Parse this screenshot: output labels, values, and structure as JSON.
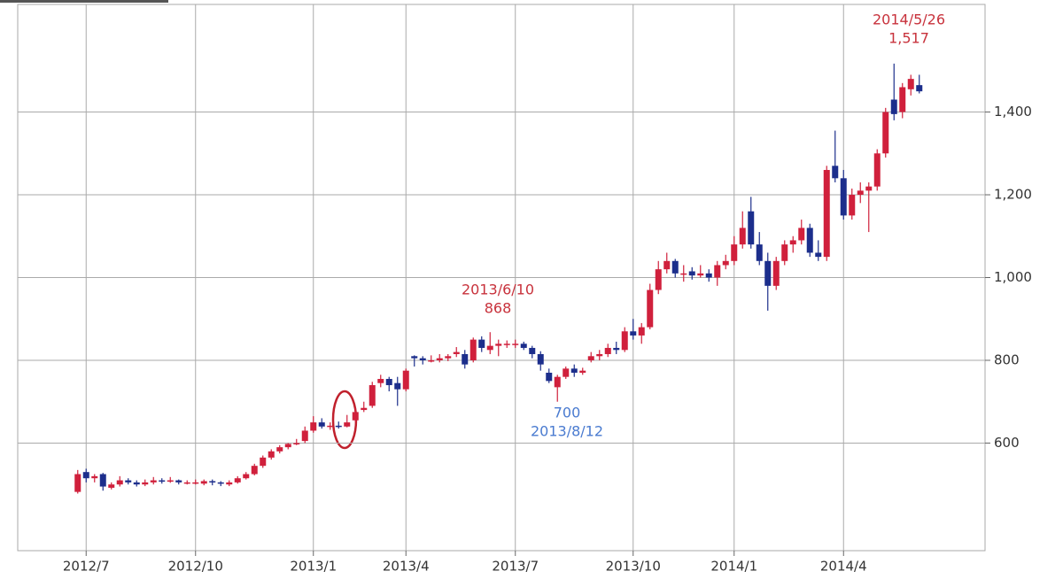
{
  "chart_data": {
    "type": "candlestick",
    "up_color": "#d0203c",
    "down_color": "#1c2e8c",
    "grid": true,
    "ylim": [
      340,
      1660
    ],
    "yticks": [
      600,
      800,
      {
        "value": 1000,
        "label": "1,000"
      },
      {
        "value": 1200,
        "label": "1,200"
      },
      {
        "value": 1400,
        "label": "1,400"
      }
    ],
    "categories": [
      null,
      "2012/7",
      null,
      null,
      null,
      null,
      null,
      null,
      null,
      null,
      null,
      null,
      null,
      null,
      "2012/10",
      null,
      null,
      null,
      null,
      null,
      null,
      null,
      null,
      null,
      null,
      null,
      null,
      null,
      "2013/1",
      null,
      null,
      null,
      null,
      null,
      null,
      null,
      null,
      null,
      null,
      "2013/4",
      null,
      null,
      null,
      null,
      null,
      null,
      null,
      null,
      null,
      null,
      null,
      null,
      "2013/7",
      null,
      null,
      null,
      null,
      null,
      null,
      null,
      null,
      null,
      null,
      null,
      null,
      null,
      "2013/10",
      null,
      null,
      null,
      null,
      null,
      null,
      null,
      null,
      null,
      null,
      null,
      "2014/1",
      null,
      null,
      null,
      null,
      null,
      null,
      null,
      null,
      null,
      null,
      null,
      null,
      "2014/4",
      null,
      null,
      null,
      null,
      null,
      null,
      null,
      null,
      null
    ],
    "open": [
      482,
      530,
      515,
      525,
      492,
      500,
      510,
      505,
      500,
      505,
      510,
      508,
      510,
      505,
      505,
      502,
      508,
      505,
      500,
      505,
      515,
      525,
      545,
      565,
      580,
      590,
      598,
      605,
      630,
      650,
      640,
      642,
      640,
      655,
      680,
      690,
      745,
      755,
      745,
      730,
      810,
      805,
      800,
      800,
      805,
      815,
      815,
      800,
      850,
      825,
      835,
      838,
      840,
      840,
      830,
      815,
      770,
      735,
      760,
      780,
      770,
      800,
      810,
      815,
      830,
      825,
      870,
      860,
      880,
      970,
      1020,
      1040,
      1010,
      1015,
      1005,
      1010,
      1000,
      1030,
      1040,
      1080,
      1160,
      1080,
      1040,
      980,
      1040,
      1080,
      1090,
      1120,
      1060,
      1050,
      1270,
      1240,
      1150,
      1200,
      1210,
      1220,
      1300,
      1430,
      1400,
      1455,
      1465
    ],
    "high": [
      535,
      538,
      525,
      528,
      505,
      520,
      515,
      510,
      512,
      518,
      515,
      518,
      512,
      510,
      512,
      512,
      512,
      508,
      510,
      520,
      530,
      550,
      570,
      585,
      595,
      600,
      610,
      640,
      665,
      660,
      650,
      652,
      668,
      685,
      700,
      748,
      765,
      760,
      760,
      780,
      812,
      810,
      812,
      815,
      815,
      832,
      825,
      855,
      858,
      868,
      850,
      848,
      850,
      845,
      835,
      822,
      780,
      765,
      785,
      790,
      782,
      820,
      825,
      840,
      845,
      880,
      900,
      890,
      985,
      1040,
      1060,
      1045,
      1030,
      1025,
      1030,
      1020,
      1040,
      1055,
      1100,
      1160,
      1195,
      1110,
      1060,
      1050,
      1090,
      1100,
      1140,
      1130,
      1090,
      1270,
      1355,
      1260,
      1215,
      1230,
      1230,
      1310,
      1410,
      1517,
      1470,
      1490,
      1490
    ],
    "low": [
      478,
      505,
      505,
      485,
      488,
      495,
      500,
      495,
      496,
      500,
      502,
      504,
      500,
      500,
      500,
      498,
      498,
      496,
      496,
      502,
      512,
      522,
      540,
      560,
      575,
      585,
      595,
      600,
      625,
      635,
      632,
      635,
      638,
      650,
      675,
      685,
      735,
      725,
      690,
      725,
      785,
      790,
      795,
      795,
      798,
      808,
      780,
      795,
      820,
      815,
      810,
      830,
      830,
      825,
      805,
      775,
      745,
      700,
      755,
      760,
      765,
      795,
      800,
      808,
      815,
      820,
      850,
      840,
      875,
      960,
      1010,
      1000,
      990,
      995,
      1000,
      990,
      980,
      1020,
      1030,
      1070,
      1070,
      1030,
      920,
      970,
      1030,
      1060,
      1080,
      1050,
      1040,
      1040,
      1230,
      1140,
      1140,
      1180,
      1110,
      1210,
      1290,
      1380,
      1385,
      1440,
      1445
    ],
    "close": [
      525,
      515,
      520,
      495,
      500,
      510,
      505,
      500,
      505,
      510,
      508,
      510,
      505,
      505,
      505,
      508,
      505,
      502,
      505,
      515,
      525,
      545,
      565,
      580,
      590,
      598,
      600,
      630,
      650,
      640,
      642,
      640,
      650,
      675,
      685,
      740,
      755,
      740,
      730,
      775,
      805,
      800,
      800,
      805,
      810,
      820,
      790,
      850,
      830,
      835,
      840,
      840,
      840,
      830,
      815,
      790,
      750,
      760,
      780,
      770,
      775,
      810,
      815,
      830,
      825,
      870,
      860,
      880,
      970,
      1020,
      1040,
      1010,
      1010,
      1005,
      1010,
      1000,
      1030,
      1040,
      1080,
      1120,
      1080,
      1040,
      980,
      1040,
      1080,
      1090,
      1120,
      1060,
      1050,
      1260,
      1240,
      1150,
      1200,
      1210,
      1220,
      1300,
      1400,
      1395,
      1460,
      1480,
      1450
    ],
    "annotations": [
      {
        "lines": [
          "2014/5/26",
          "1,517"
        ],
        "color": "#c8323c"
      },
      {
        "lines": [
          "2013/6/10",
          "868"
        ],
        "color": "#c8323c"
      },
      {
        "lines": [
          "700",
          "2013/8/12"
        ],
        "color": "#4a7bd0"
      }
    ]
  }
}
